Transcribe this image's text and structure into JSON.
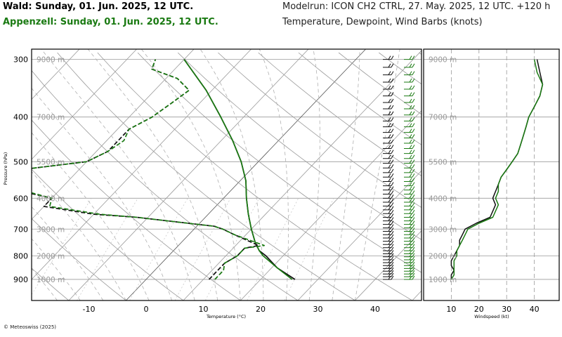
{
  "header": {
    "title_wald": "Wald: Sunday, 01. Jun. 2025, 12 UTC.",
    "title_appenzell": "Appenzell: Sunday, 01. Jun. 2025, 12 UTC.",
    "model_run": "Modelrun: ICON CH2 CTRL, 27. May. 2025, 12 UTC. +120 h",
    "parameters": "Temperature, Dewpoint, Wind Barbs (knots)"
  },
  "footer": {
    "copyright": "© Meteoswiss (2025)"
  },
  "colors": {
    "wald": "#111111",
    "appenzell": "#1a7a12"
  },
  "chart_data": [
    {
      "type": "line",
      "subtype": "skew-t",
      "xlabel": "Temperature (°C)",
      "ylabel": "Pressure (hPa)",
      "xlim": [
        -20,
        47
      ],
      "x_ticks": [
        -10,
        0,
        10,
        20,
        30,
        40
      ],
      "y_ticks": [
        300,
        400,
        500,
        600,
        700,
        800,
        900
      ],
      "height_labels": [
        {
          "p": 300,
          "text": "9000 m"
        },
        {
          "p": 400,
          "text": "7000 m"
        },
        {
          "p": 500,
          "text": "5500 m"
        },
        {
          "p": 600,
          "text": "4000 m"
        },
        {
          "p": 700,
          "text": "3000 m"
        },
        {
          "p": 800,
          "text": "2000 m"
        },
        {
          "p": 900,
          "text": "1000 m"
        }
      ],
      "series": [
        {
          "name": "Wald",
          "variable": "temperature",
          "p": [
            900,
            850,
            800,
            780,
            750,
            700,
            650,
            600,
            550,
            500,
            450,
            400,
            350,
            300
          ],
          "values": [
            26,
            21,
            17,
            15,
            13,
            10,
            7,
            4,
            1,
            -3,
            -8,
            -14,
            -21,
            -30
          ]
        },
        {
          "name": "Appenzell",
          "variable": "temperature",
          "p": [
            900,
            850,
            800,
            780,
            750,
            700,
            650,
            600,
            550,
            500,
            450,
            400,
            350,
            300
          ],
          "values": [
            25.5,
            21,
            16.5,
            15,
            13,
            10,
            7,
            4,
            1,
            -3,
            -8,
            -14,
            -21,
            -30
          ]
        },
        {
          "name": "Wald",
          "variable": "dewpoint",
          "p": [
            900,
            860,
            830,
            800,
            770,
            760,
            720,
            700,
            690,
            680,
            660,
            650,
            625,
            600,
            575,
            560,
            540,
            520,
            500,
            475,
            450,
            425,
            400,
            375,
            350,
            330,
            315,
            300
          ],
          "values": [
            11,
            11,
            11,
            12,
            12,
            14,
            8,
            5,
            3,
            -2,
            -12,
            -20,
            -30,
            -30,
            -38,
            -45,
            -45,
            -40,
            -30,
            -28,
            -28,
            -28,
            -26,
            -25,
            -24,
            -28,
            -34,
            -35
          ]
        },
        {
          "name": "Appenzell",
          "variable": "dewpoint",
          "p": [
            900,
            860,
            830,
            800,
            770,
            760,
            720,
            700,
            690,
            680,
            660,
            650,
            625,
            600,
            575,
            560,
            540,
            520,
            500,
            475,
            450,
            425,
            400,
            375,
            350,
            330,
            315,
            300
          ],
          "values": [
            12,
            12,
            11,
            12,
            12,
            15,
            8,
            5,
            3,
            -2,
            -12,
            -19,
            -29,
            -30,
            -37,
            -45,
            -44,
            -40,
            -30,
            -28,
            -27,
            -28,
            -26,
            -25,
            -24,
            -28,
            -34,
            -35
          ]
        }
      ]
    },
    {
      "type": "line",
      "xlabel": "Windspeed (kt)",
      "xlim": [
        0,
        50
      ],
      "x_ticks": [
        10,
        20,
        30,
        40
      ],
      "height_labels": [
        {
          "p": 300,
          "text": "9000 m"
        },
        {
          "p": 400,
          "text": "7000 m"
        },
        {
          "p": 500,
          "text": "5500 m"
        },
        {
          "p": 600,
          "text": "4000 m"
        },
        {
          "p": 700,
          "text": "3000 m"
        },
        {
          "p": 800,
          "text": "2000 m"
        },
        {
          "p": 900,
          "text": "1000 m"
        }
      ],
      "series": [
        {
          "name": "Wald",
          "p": [
            900,
            880,
            860,
            840,
            820,
            800,
            780,
            760,
            740,
            720,
            700,
            680,
            660,
            640,
            620,
            600,
            580,
            560,
            540,
            520,
            500,
            480,
            460,
            440,
            420,
            400,
            380,
            360,
            340,
            320,
            300
          ],
          "values": [
            10,
            10,
            11,
            10,
            10,
            11,
            12,
            13,
            13,
            14,
            15,
            19,
            24,
            25,
            26,
            25,
            26,
            27,
            28,
            30,
            32,
            34,
            35,
            36,
            37,
            38,
            40,
            42,
            43,
            42,
            41
          ]
        },
        {
          "name": "Appenzell",
          "p": [
            900,
            880,
            860,
            840,
            820,
            800,
            780,
            760,
            740,
            720,
            700,
            680,
            660,
            640,
            620,
            600,
            580,
            560,
            540,
            520,
            500,
            480,
            460,
            440,
            420,
            400,
            380,
            360,
            340,
            320,
            300
          ],
          "values": [
            10,
            11,
            11,
            11,
            11,
            12,
            12,
            13,
            14,
            15,
            16,
            20,
            25,
            26,
            27,
            26,
            27,
            27,
            28,
            30,
            32,
            34,
            35,
            36,
            37,
            38,
            40,
            42,
            43,
            41,
            40
          ]
        }
      ]
    }
  ]
}
